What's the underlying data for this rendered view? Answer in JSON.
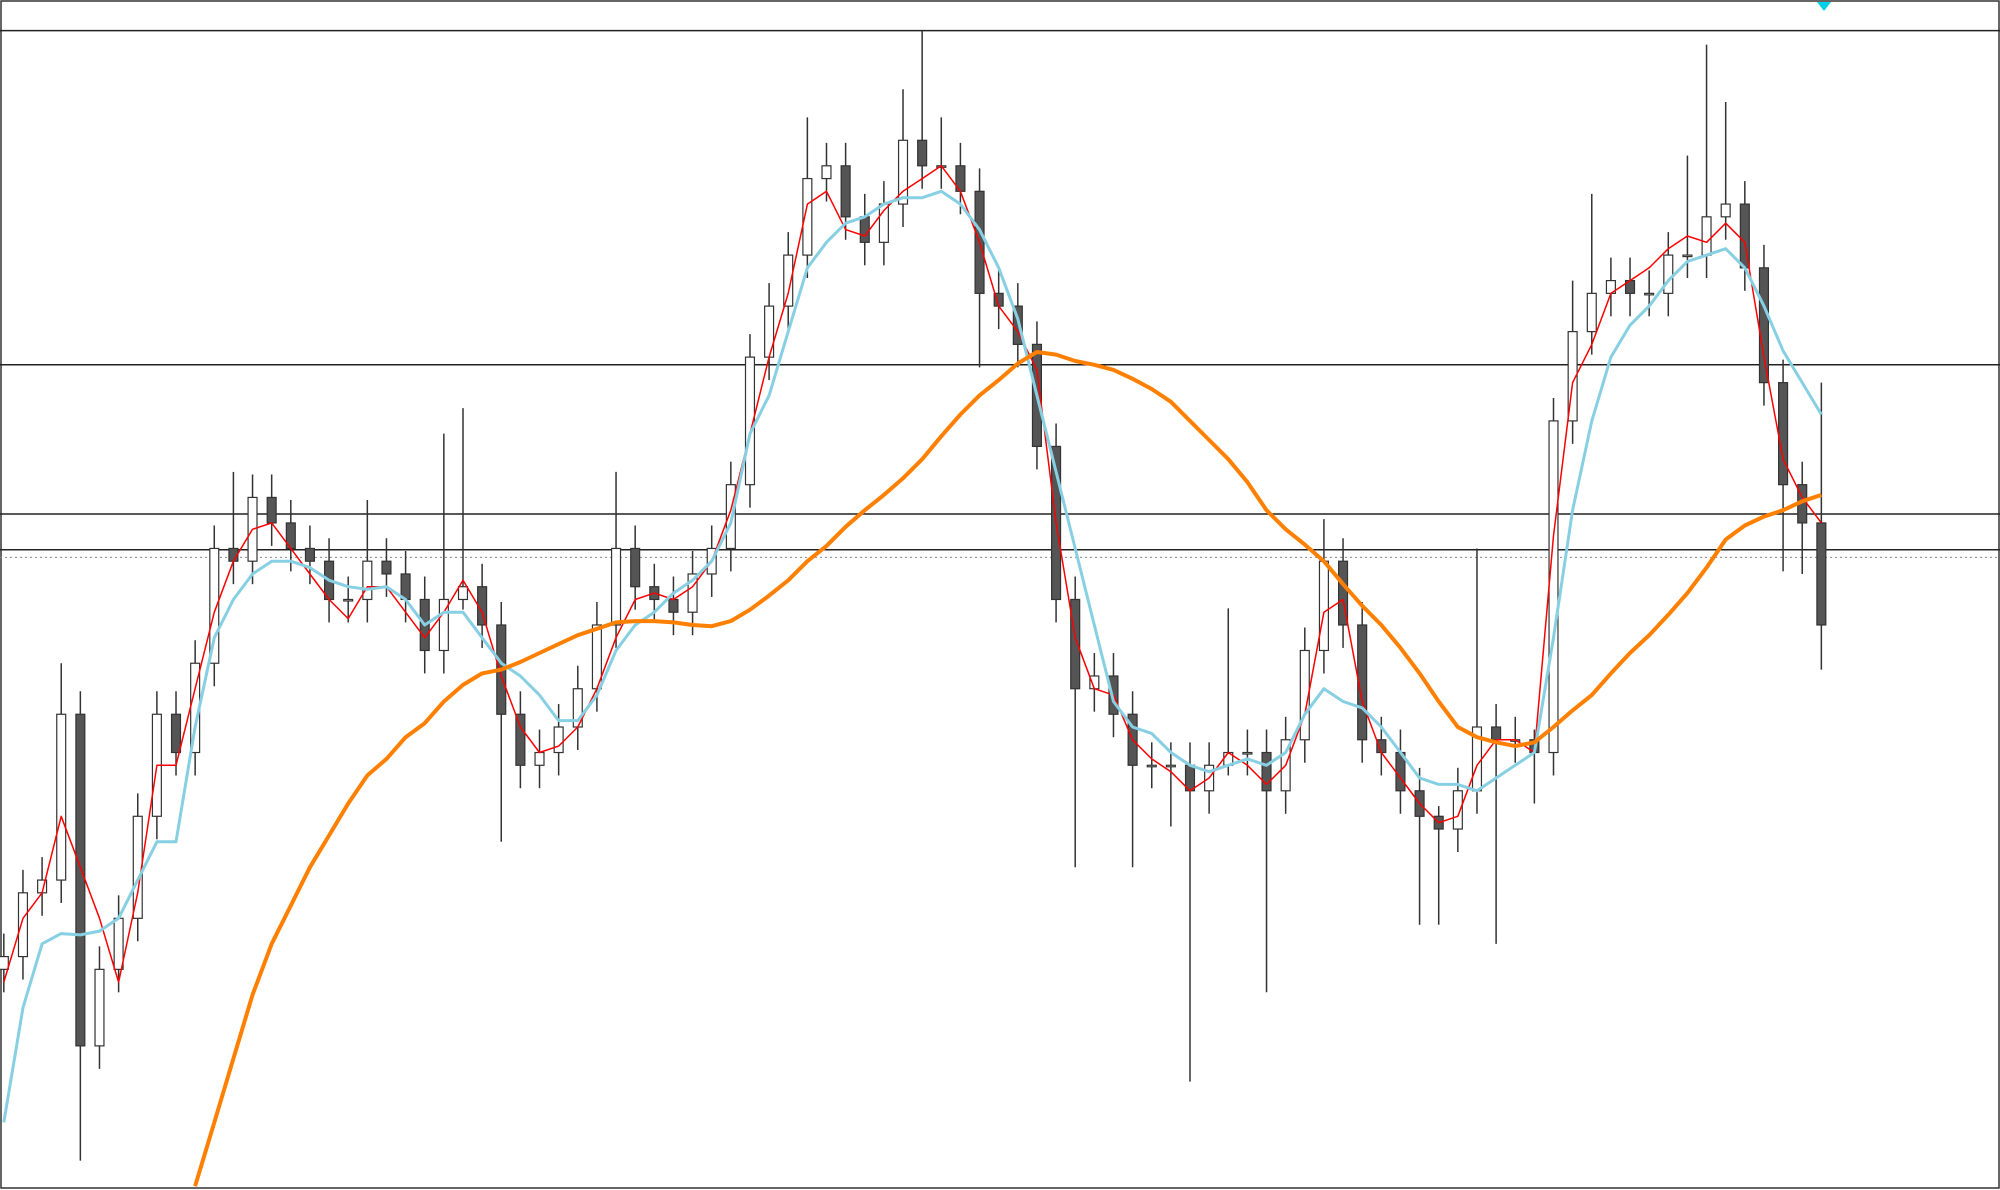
{
  "chart_data": {
    "type": "candlestick",
    "ylim": [
      0,
      933
    ],
    "grid": false,
    "up_color": "#ffffff",
    "down_color": "#555555",
    "wick_color": "#333333",
    "level_color": "#222222",
    "levels": [
      909,
      647,
      530,
      502
    ],
    "dotted_level": 496,
    "open": [
      173,
      183,
      233,
      243,
      373,
      113,
      173,
      213,
      293,
      373,
      343,
      413,
      503,
      493,
      543,
      523,
      503,
      493,
      463,
      463,
      493,
      483,
      463,
      423,
      463,
      473,
      443,
      373,
      333,
      343,
      363,
      393,
      443,
      503,
      473,
      463,
      453,
      483,
      503,
      553,
      653,
      693,
      733,
      793,
      803,
      763,
      743,
      773,
      823,
      803,
      803,
      783,
      703,
      693,
      663,
      583,
      463,
      393,
      403,
      373,
      333,
      333,
      333,
      313,
      333,
      343,
      343,
      313,
      353,
      423,
      493,
      443,
      353,
      343,
      313,
      293,
      283,
      313,
      363,
      353,
      353,
      343,
      603,
      673,
      703,
      713,
      703,
      703,
      733,
      733,
      763,
      773,
      723,
      633,
      553,
      523
    ],
    "high": [
      201,
      251,
      261,
      413,
      391,
      191,
      231,
      311,
      391,
      391,
      431,
      521,
      563,
      561,
      561,
      541,
      521,
      511,
      481,
      541,
      511,
      501,
      481,
      593,
      613,
      491,
      461,
      391,
      361,
      381,
      411,
      461,
      563,
      521,
      491,
      481,
      501,
      521,
      571,
      671,
      711,
      751,
      841,
      821,
      821,
      781,
      791,
      863,
      909,
      841,
      821,
      801,
      721,
      711,
      681,
      601,
      481,
      421,
      421,
      391,
      351,
      351,
      351,
      351,
      456,
      361,
      361,
      371,
      441,
      526,
      511,
      461,
      371,
      361,
      331,
      301,
      331,
      503,
      381,
      371,
      361,
      621,
      713,
      781,
      731,
      731,
      721,
      751,
      811,
      898,
      853,
      791,
      741,
      651,
      571,
      633
    ],
    "low": [
      155,
      165,
      215,
      225,
      23,
      95,
      155,
      195,
      275,
      325,
      325,
      395,
      475,
      475,
      505,
      485,
      475,
      445,
      445,
      445,
      465,
      445,
      405,
      405,
      455,
      425,
      273,
      315,
      315,
      325,
      345,
      375,
      425,
      455,
      445,
      435,
      435,
      465,
      485,
      535,
      635,
      675,
      715,
      775,
      745,
      725,
      725,
      755,
      785,
      785,
      765,
      645,
      675,
      645,
      565,
      445,
      253,
      375,
      355,
      253,
      315,
      285,
      85,
      295,
      325,
      325,
      155,
      295,
      335,
      405,
      425,
      335,
      325,
      295,
      208,
      208,
      265,
      295,
      193,
      335,
      303,
      325,
      585,
      655,
      685,
      685,
      685,
      685,
      715,
      715,
      745,
      705,
      615,
      485,
      483,
      408
    ],
    "close": [
      183,
      233,
      243,
      373,
      113,
      173,
      213,
      293,
      373,
      343,
      413,
      503,
      493,
      543,
      523,
      503,
      493,
      463,
      463,
      493,
      483,
      463,
      423,
      463,
      473,
      443,
      373,
      333,
      343,
      363,
      393,
      443,
      503,
      473,
      463,
      453,
      483,
      503,
      553,
      653,
      693,
      733,
      793,
      803,
      763,
      743,
      773,
      823,
      803,
      803,
      783,
      703,
      693,
      663,
      583,
      463,
      393,
      403,
      373,
      333,
      333,
      333,
      313,
      333,
      343,
      343,
      313,
      353,
      423,
      493,
      443,
      353,
      343,
      313,
      293,
      283,
      313,
      363,
      353,
      353,
      343,
      603,
      673,
      703,
      713,
      703,
      703,
      733,
      733,
      763,
      773,
      723,
      633,
      553,
      523,
      443
    ],
    "series": [
      {
        "color": "#ff0000",
        "width": 1.5,
        "values": [
          163,
          213,
          233,
          293,
          253,
          213,
          163,
          233,
          333,
          333,
          393,
          453,
          493,
          518,
          523,
          503,
          483,
          463,
          448,
          473,
          473,
          453,
          433,
          453,
          478,
          453,
          403,
          363,
          343,
          348,
          363,
          393,
          433,
          463,
          468,
          463,
          473,
          493,
          533,
          593,
          653,
          703,
          773,
          783,
          753,
          748,
          768,
          783,
          793,
          803,
          783,
          743,
          693,
          673,
          643,
          523,
          433,
          393,
          388,
          353,
          338,
          328,
          313,
          323,
          343,
          333,
          318,
          333,
          373,
          453,
          463,
          383,
          343,
          323,
          303,
          288,
          293,
          333,
          353,
          353,
          343,
          513,
          633,
          663,
          703,
          713,
          723,
          738,
          748,
          743,
          758,
          743,
          653,
          573,
          543,
          523
        ]
      },
      {
        "color": "#87cfe3",
        "width": 3,
        "values": [
          53,
          143,
          193,
          201,
          200,
          203,
          213,
          243,
          273,
          273,
          363,
          433,
          463,
          483,
          493,
          493,
          488,
          478,
          473,
          471,
          473,
          463,
          443,
          453,
          453,
          433,
          413,
          403,
          388,
          368,
          368,
          388,
          423,
          443,
          453,
          468,
          478,
          493,
          523,
          593,
          623,
          673,
          723,
          743,
          758,
          763,
          773,
          778,
          778,
          783,
          773,
          753,
          723,
          683,
          623,
          563,
          503,
          443,
          383,
          363,
          358,
          343,
          333,
          328,
          333,
          338,
          333,
          343,
          373,
          393,
          383,
          378,
          363,
          343,
          323,
          318,
          318,
          313,
          323,
          333,
          343,
          433,
          533,
          603,
          653,
          678,
          693,
          713,
          728,
          733,
          738,
          723,
          693,
          658,
          633,
          608
        ]
      },
      {
        "color": "#ff8000",
        "width": 4,
        "values": [
          null,
          null,
          null,
          null,
          null,
          null,
          null,
          null,
          null,
          null,
          3,
          53,
          103,
          153,
          193,
          223,
          253,
          278,
          303,
          325,
          338,
          355,
          366,
          383,
          396,
          405,
          408,
          414,
          421,
          428,
          435,
          440,
          445,
          446,
          446,
          445,
          443,
          442,
          446,
          455,
          466,
          478,
          493,
          505,
          520,
          533,
          545,
          558,
          573,
          591,
          608,
          623,
          635,
          648,
          657,
          655,
          650,
          647,
          643,
          636,
          628,
          618,
          603,
          588,
          573,
          555,
          533,
          518,
          506,
          493,
          475,
          458,
          443,
          425,
          405,
          383,
          363,
          355,
          351,
          348,
          351,
          363,
          376,
          388,
          405,
          421,
          435,
          451,
          468,
          488,
          510,
          521,
          528,
          533,
          540,
          545
        ]
      }
    ]
  }
}
